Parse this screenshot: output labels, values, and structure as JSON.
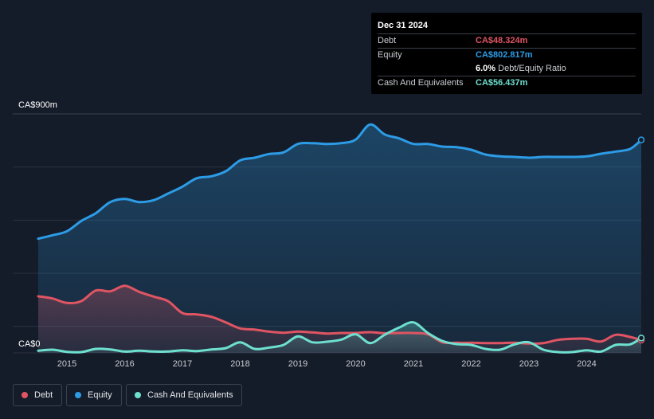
{
  "tooltip": {
    "date": "Dec 31 2024",
    "debt_label": "Debt",
    "debt_value": "CA$48.324m",
    "equity_label": "Equity",
    "equity_value": "CA$802.817m",
    "ratio_value": "6.0%",
    "ratio_label": "Debt/Equity Ratio",
    "cash_label": "Cash And Equivalents",
    "cash_value": "CA$56.437m"
  },
  "legend": {
    "debt": "Debt",
    "equity": "Equity",
    "cash": "Cash And Equivalents"
  },
  "colors": {
    "debt": "#e05563",
    "equity": "#2d9ce6",
    "cash": "#6ee0cf",
    "background": "#151c29"
  },
  "chart_data": {
    "type": "area",
    "title": "",
    "xlabel": "",
    "ylabel": "",
    "y_top_label": "CA$900m",
    "y_bottom_label": "CA$0",
    "ylim": [
      0,
      900
    ],
    "xlim": [
      2014.5,
      2025.0
    ],
    "grid": true,
    "x_ticks": [
      "2015",
      "2016",
      "2017",
      "2018",
      "2019",
      "2020",
      "2021",
      "2022",
      "2023",
      "2024"
    ],
    "series": [
      {
        "name": "Equity",
        "x": [
          2014.5,
          2014.75,
          2015.0,
          2015.25,
          2015.5,
          2015.75,
          2016.0,
          2016.25,
          2016.5,
          2016.75,
          2017.0,
          2017.25,
          2017.5,
          2017.75,
          2018.0,
          2018.25,
          2018.5,
          2018.75,
          2019.0,
          2019.25,
          2019.5,
          2019.75,
          2020.0,
          2020.25,
          2020.5,
          2020.75,
          2021.0,
          2021.25,
          2021.5,
          2021.75,
          2022.0,
          2022.25,
          2022.5,
          2022.75,
          2023.0,
          2023.25,
          2023.5,
          2023.75,
          2024.0,
          2024.25,
          2024.5,
          2024.75,
          2025.0
        ],
        "values": [
          430,
          443,
          458,
          497,
          526,
          568,
          580,
          568,
          575,
          600,
          626,
          658,
          665,
          684,
          725,
          735,
          749,
          755,
          787,
          790,
          787,
          790,
          803,
          860,
          823,
          808,
          787,
          787,
          777,
          775,
          765,
          747,
          740,
          738,
          735,
          738,
          738,
          738,
          740,
          750,
          758,
          768,
          802
        ]
      },
      {
        "name": "Debt",
        "x": [
          2014.5,
          2014.75,
          2015.0,
          2015.25,
          2015.5,
          2015.75,
          2016.0,
          2016.25,
          2016.5,
          2016.75,
          2017.0,
          2017.25,
          2017.5,
          2017.75,
          2018.0,
          2018.25,
          2018.5,
          2018.75,
          2019.0,
          2019.25,
          2019.5,
          2019.75,
          2020.0,
          2020.25,
          2020.5,
          2020.75,
          2021.0,
          2021.25,
          2021.5,
          2021.75,
          2022.0,
          2022.25,
          2022.5,
          2022.75,
          2023.0,
          2023.25,
          2023.5,
          2023.75,
          2024.0,
          2024.25,
          2024.5,
          2024.75,
          2025.0
        ],
        "values": [
          213,
          205,
          188,
          195,
          235,
          232,
          253,
          230,
          212,
          195,
          150,
          145,
          136,
          115,
          92,
          88,
          80,
          76,
          80,
          77,
          73,
          75,
          75,
          78,
          74,
          75,
          75,
          70,
          40,
          38,
          38,
          37,
          37,
          38,
          35,
          37,
          49,
          53,
          53,
          43,
          68,
          60,
          48
        ]
      },
      {
        "name": "Cash And Equivalents",
        "x": [
          2014.5,
          2014.75,
          2015.0,
          2015.25,
          2015.5,
          2015.75,
          2016.0,
          2016.25,
          2016.5,
          2016.75,
          2017.0,
          2017.25,
          2017.5,
          2017.75,
          2018.0,
          2018.25,
          2018.5,
          2018.75,
          2019.0,
          2019.25,
          2019.5,
          2019.75,
          2020.0,
          2020.25,
          2020.5,
          2020.75,
          2021.0,
          2021.25,
          2021.5,
          2021.75,
          2022.0,
          2022.25,
          2022.5,
          2022.75,
          2023.0,
          2023.25,
          2023.5,
          2023.75,
          2024.0,
          2024.25,
          2024.5,
          2024.75,
          2025.0
        ],
        "values": [
          8,
          12,
          4,
          3,
          15,
          13,
          5,
          8,
          5,
          5,
          10,
          7,
          13,
          18,
          40,
          15,
          20,
          30,
          62,
          40,
          42,
          50,
          70,
          37,
          68,
          95,
          115,
          75,
          45,
          33,
          30,
          15,
          12,
          32,
          40,
          12,
          3,
          3,
          10,
          5,
          30,
          32,
          56
        ]
      }
    ]
  }
}
